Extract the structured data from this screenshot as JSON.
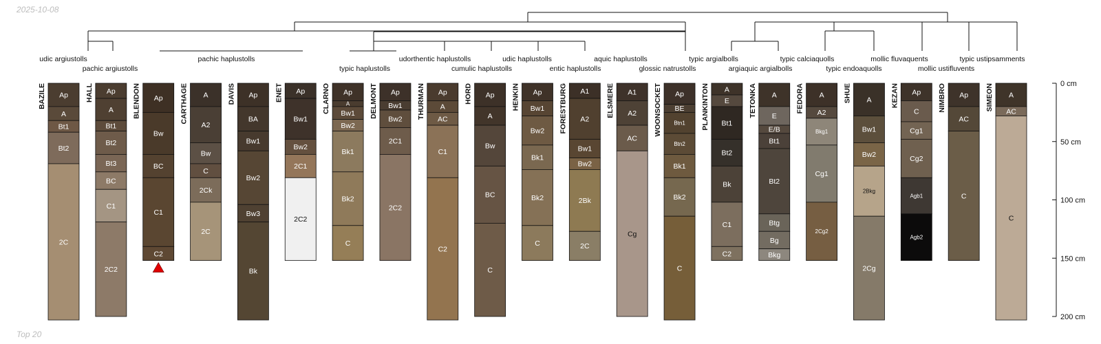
{
  "header_date": "2025-10-08",
  "footer_note": "Top 20",
  "colors": {
    "background": "#ffffff",
    "line": "#111111",
    "depth_limit_marker": "#e00000"
  },
  "chart_data": {
    "type": "soil_profile_sketch",
    "depth_axis": {
      "unit": "cm",
      "range": [
        0,
        200
      ],
      "ticks": [
        0,
        50,
        100,
        150,
        200
      ],
      "tick_labels": [
        "0 cm",
        "50 cm",
        "100 cm",
        "150 cm",
        "200 cm"
      ]
    },
    "taxonomy_labels": [
      {
        "text": "udic argiustolls",
        "row": 1
      },
      {
        "text": "pachic argiustolls",
        "row": 2
      },
      {
        "text": "pachic haplustolls",
        "row": 1
      },
      {
        "text": "typic haplustolls",
        "row": 2
      },
      {
        "text": "udorthentic haplustolls",
        "row": 1
      },
      {
        "text": "cumulic haplustolls",
        "row": 2
      },
      {
        "text": "udic haplustolls",
        "row": 1
      },
      {
        "text": "entic haplustolls",
        "row": 2
      },
      {
        "text": "aquic haplustolls",
        "row": 1
      },
      {
        "text": "glossic natrustolls",
        "row": 2
      },
      {
        "text": "typic argialbolls",
        "row": 1
      },
      {
        "text": "argiaquic argialbolls",
        "row": 2
      },
      {
        "text": "typic calciaquolls",
        "row": 1
      },
      {
        "text": "typic endoaquolls",
        "row": 2
      },
      {
        "text": "mollic fluvaquents",
        "row": 1
      },
      {
        "text": "mollic ustifluvents",
        "row": 2
      },
      {
        "text": "typic ustipsamments",
        "row": 1
      }
    ],
    "profiles": [
      {
        "name": "BAZILE",
        "horizons": [
          {
            "name": "Ap",
            "top": 0,
            "bottom": 20,
            "color": "#4b3d30"
          },
          {
            "name": "A",
            "top": 20,
            "bottom": 32,
            "color": "#5a4a3a"
          },
          {
            "name": "Bt1",
            "top": 32,
            "bottom": 42,
            "color": "#6e5845"
          },
          {
            "name": "Bt2",
            "top": 42,
            "bottom": 69,
            "color": "#7e6b5b"
          },
          {
            "name": "2C",
            "top": 69,
            "bottom": 203,
            "color": "#a58e72"
          }
        ]
      },
      {
        "name": "HALL",
        "horizons": [
          {
            "name": "Ap",
            "top": 0,
            "bottom": 13,
            "color": "#4b3d30"
          },
          {
            "name": "A",
            "top": 13,
            "bottom": 32,
            "color": "#4f4032"
          },
          {
            "name": "Bt1",
            "top": 32,
            "bottom": 41,
            "color": "#5d4b3b"
          },
          {
            "name": "Bt2",
            "top": 41,
            "bottom": 61,
            "color": "#6e5b4a"
          },
          {
            "name": "Bt3",
            "top": 61,
            "bottom": 76,
            "color": "#7a6655"
          },
          {
            "name": "BC",
            "top": 76,
            "bottom": 91,
            "color": "#8d7a67"
          },
          {
            "name": "C1",
            "top": 91,
            "bottom": 119,
            "color": "#a49583"
          },
          {
            "name": "2C2",
            "top": 119,
            "bottom": 200,
            "color": "#8d7a68"
          }
        ]
      },
      {
        "name": "BLENDON",
        "depth_limit_marker": true,
        "horizons": [
          {
            "name": "Ap",
            "top": 0,
            "bottom": 25,
            "color": "#3e3024"
          },
          {
            "name": "Bw",
            "top": 25,
            "bottom": 61,
            "color": "#4a3a2a"
          },
          {
            "name": "BC",
            "top": 61,
            "bottom": 81,
            "color": "#544230"
          },
          {
            "name": "C1",
            "top": 81,
            "bottom": 140,
            "color": "#5a4631"
          },
          {
            "name": "C2",
            "top": 140,
            "bottom": 152,
            "color": "#5e4833"
          }
        ]
      },
      {
        "name": "CARTHAGE",
        "horizons": [
          {
            "name": "A",
            "top": 0,
            "bottom": 20,
            "color": "#3b3129"
          },
          {
            "name": "A2",
            "top": 20,
            "bottom": 51,
            "color": "#4a3f35"
          },
          {
            "name": "Bw",
            "top": 51,
            "bottom": 69,
            "color": "#5c5045"
          },
          {
            "name": "C",
            "top": 69,
            "bottom": 81,
            "color": "#614f40"
          },
          {
            "name": "2Ck",
            "top": 81,
            "bottom": 102,
            "color": "#7c6c5a"
          },
          {
            "name": "2C",
            "top": 102,
            "bottom": 152,
            "color": "#a69479"
          }
        ]
      },
      {
        "name": "DAVIS",
        "horizons": [
          {
            "name": "Ap",
            "top": 0,
            "bottom": 20,
            "color": "#3d3127"
          },
          {
            "name": "BA",
            "top": 20,
            "bottom": 41,
            "color": "#43372c"
          },
          {
            "name": "Bw1",
            "top": 41,
            "bottom": 58,
            "color": "#473a2e"
          },
          {
            "name": "Bw2",
            "top": 58,
            "bottom": 104,
            "color": "#564634"
          },
          {
            "name": "Bw3",
            "top": 104,
            "bottom": 119,
            "color": "#4f4132"
          },
          {
            "name": "Bk",
            "top": 119,
            "bottom": 203,
            "color": "#544633"
          }
        ]
      },
      {
        "name": "ENET",
        "horizons": [
          {
            "name": "Ap",
            "top": 0,
            "bottom": 13,
            "color": "#3b3129"
          },
          {
            "name": "Bw1",
            "top": 13,
            "bottom": 48,
            "color": "#3e322a"
          },
          {
            "name": "Bw2",
            "top": 48,
            "bottom": 61,
            "color": "#64503f"
          },
          {
            "name": "2C1",
            "top": 61,
            "bottom": 81,
            "color": "#94765a"
          },
          {
            "name": "2C2",
            "top": 81,
            "bottom": 152,
            "color": "#f0f0f0"
          }
        ]
      },
      {
        "name": "CLARNO",
        "horizons": [
          {
            "name": "Ap",
            "top": 0,
            "bottom": 15,
            "color": "#3f3228"
          },
          {
            "name": "A",
            "top": 15,
            "bottom": 20,
            "color": "#4a3c2f"
          },
          {
            "name": "Bw1",
            "top": 20,
            "bottom": 31,
            "color": "#5c4a39"
          },
          {
            "name": "Bw2",
            "top": 31,
            "bottom": 41,
            "color": "#7c6851"
          },
          {
            "name": "Bk1",
            "top": 41,
            "bottom": 76,
            "color": "#8c7a5e"
          },
          {
            "name": "Bk2",
            "top": 76,
            "bottom": 122,
            "color": "#8f7a5a"
          },
          {
            "name": "C",
            "top": 122,
            "bottom": 152,
            "color": "#957e57"
          }
        ]
      },
      {
        "name": "DELMONT",
        "horizons": [
          {
            "name": "Ap",
            "top": 0,
            "bottom": 15,
            "color": "#3d3129"
          },
          {
            "name": "Bw1",
            "top": 15,
            "bottom": 23,
            "color": "#4a3d31"
          },
          {
            "name": "Bw2",
            "top": 23,
            "bottom": 38,
            "color": "#5f4e3d"
          },
          {
            "name": "2C1",
            "top": 38,
            "bottom": 61,
            "color": "#6e5c4b"
          },
          {
            "name": "2C2",
            "top": 61,
            "bottom": 152,
            "color": "#8a7564"
          }
        ]
      },
      {
        "name": "THURMAN",
        "horizons": [
          {
            "name": "Ap",
            "top": 0,
            "bottom": 15,
            "color": "#4a3b2e"
          },
          {
            "name": "A",
            "top": 15,
            "bottom": 25,
            "color": "#5c4a38"
          },
          {
            "name": "AC",
            "top": 25,
            "bottom": 36,
            "color": "#6e5a45"
          },
          {
            "name": "C1",
            "top": 36,
            "bottom": 81,
            "color": "#8b7257"
          },
          {
            "name": "C2",
            "top": 81,
            "bottom": 203,
            "color": "#93744f"
          }
        ]
      },
      {
        "name": "HORD",
        "horizons": [
          {
            "name": "Ap",
            "top": 0,
            "bottom": 20,
            "color": "#3d3128"
          },
          {
            "name": "A",
            "top": 20,
            "bottom": 36,
            "color": "#42352a"
          },
          {
            "name": "Bw",
            "top": 36,
            "bottom": 71,
            "color": "#54463a"
          },
          {
            "name": "BC",
            "top": 71,
            "bottom": 120,
            "color": "#665444"
          },
          {
            "name": "C",
            "top": 120,
            "bottom": 200,
            "color": "#6e5b48"
          }
        ]
      },
      {
        "name": "HENKIN",
        "horizons": [
          {
            "name": "Ap",
            "top": 0,
            "bottom": 15,
            "color": "#3f3228"
          },
          {
            "name": "Bw1",
            "top": 15,
            "bottom": 28,
            "color": "#574533"
          },
          {
            "name": "Bw2",
            "top": 28,
            "bottom": 53,
            "color": "#6e5a43"
          },
          {
            "name": "Bk1",
            "top": 53,
            "bottom": 74,
            "color": "#7a6850"
          },
          {
            "name": "Bk2",
            "top": 74,
            "bottom": 122,
            "color": "#857156"
          },
          {
            "name": "C",
            "top": 122,
            "bottom": 152,
            "color": "#8c7a5c"
          }
        ]
      },
      {
        "name": "FORESTBURG",
        "horizons": [
          {
            "name": "A1",
            "top": 0,
            "bottom": 13,
            "color": "#3c3027"
          },
          {
            "name": "A2",
            "top": 13,
            "bottom": 48,
            "color": "#50402f"
          },
          {
            "name": "Bw1",
            "top": 48,
            "bottom": 64,
            "color": "#594632"
          },
          {
            "name": "Bw2",
            "top": 64,
            "bottom": 74,
            "color": "#7a6245"
          },
          {
            "name": "2Bk",
            "top": 74,
            "bottom": 127,
            "color": "#8e7a52"
          },
          {
            "name": "2C",
            "top": 127,
            "bottom": 152,
            "color": "#8a7e66"
          }
        ]
      },
      {
        "name": "ELSMERE",
        "horizons": [
          {
            "name": "A1",
            "top": 0,
            "bottom": 15,
            "color": "#3e322a"
          },
          {
            "name": "A2",
            "top": 15,
            "bottom": 36,
            "color": "#4e4236"
          },
          {
            "name": "AC",
            "top": 36,
            "bottom": 58,
            "color": "#6b5b4b"
          },
          {
            "name": "Cg",
            "top": 58,
            "bottom": 200,
            "color": "#a8968a"
          }
        ]
      },
      {
        "name": "WOONSOCKET",
        "horizons": [
          {
            "name": "Ap",
            "top": 0,
            "bottom": 18,
            "color": "#3d3129"
          },
          {
            "name": "BE",
            "top": 18,
            "bottom": 25,
            "color": "#4c3f32"
          },
          {
            "name": "Btn1",
            "top": 25,
            "bottom": 43,
            "color": "#52422f"
          },
          {
            "name": "Btn2",
            "top": 43,
            "bottom": 61,
            "color": "#5c4b36"
          },
          {
            "name": "Bk1",
            "top": 61,
            "bottom": 81,
            "color": "#6e5a3f"
          },
          {
            "name": "Bk2",
            "top": 81,
            "bottom": 114,
            "color": "#76684f"
          },
          {
            "name": "C",
            "top": 114,
            "bottom": 203,
            "color": "#765e39"
          }
        ]
      },
      {
        "name": "PLANKINTON",
        "horizons": [
          {
            "name": "A",
            "top": 0,
            "bottom": 10,
            "color": "#3e3329"
          },
          {
            "name": "E",
            "top": 10,
            "bottom": 20,
            "color": "#55493e"
          },
          {
            "name": "Bt1",
            "top": 20,
            "bottom": 48,
            "color": "#2f2822"
          },
          {
            "name": "Bt2",
            "top": 48,
            "bottom": 71,
            "color": "#35302a"
          },
          {
            "name": "Bk",
            "top": 71,
            "bottom": 102,
            "color": "#4c4238"
          },
          {
            "name": "C1",
            "top": 102,
            "bottom": 140,
            "color": "#7c6e5e"
          },
          {
            "name": "C2",
            "top": 140,
            "bottom": 152,
            "color": "#7e715f"
          }
        ]
      },
      {
        "name": "TETONKA",
        "horizons": [
          {
            "name": "A",
            "top": 0,
            "bottom": 20,
            "color": "#3e3329"
          },
          {
            "name": "E",
            "top": 20,
            "bottom": 36,
            "color": "#6e665e"
          },
          {
            "name": "E/B",
            "top": 36,
            "bottom": 43,
            "color": "#55493e"
          },
          {
            "name": "Bt1",
            "top": 43,
            "bottom": 56,
            "color": "#4b4139"
          },
          {
            "name": "Bt2",
            "top": 56,
            "bottom": 112,
            "color": "#4e453c"
          },
          {
            "name": "Btg",
            "top": 112,
            "bottom": 127,
            "color": "#6a6459"
          },
          {
            "name": "Bg",
            "top": 127,
            "bottom": 142,
            "color": "#736c61"
          },
          {
            "name": "Bkg",
            "top": 142,
            "bottom": 152,
            "color": "#8d877e"
          }
        ]
      },
      {
        "name": "FEDORA",
        "horizons": [
          {
            "name": "A",
            "top": 0,
            "bottom": 20,
            "color": "#3d3128"
          },
          {
            "name": "A2",
            "top": 20,
            "bottom": 30,
            "color": "#55493e"
          },
          {
            "name": "Bkg1",
            "top": 30,
            "bottom": 53,
            "color": "#8e8679"
          },
          {
            "name": "Cg1",
            "top": 53,
            "bottom": 102,
            "color": "#817b6e"
          },
          {
            "name": "2Cg2",
            "top": 102,
            "bottom": 152,
            "color": "#765e42"
          }
        ]
      },
      {
        "name": "SHUE",
        "horizons": [
          {
            "name": "A",
            "top": 0,
            "bottom": 28,
            "color": "#3a3128"
          },
          {
            "name": "Bw1",
            "top": 28,
            "bottom": 51,
            "color": "#5c4f3c"
          },
          {
            "name": "Bw2",
            "top": 51,
            "bottom": 71,
            "color": "#7a6547"
          },
          {
            "name": "2Bkg",
            "top": 71,
            "bottom": 114,
            "color": "#b6a48a"
          },
          {
            "name": "2Cg",
            "top": 114,
            "bottom": 203,
            "color": "#857a69"
          }
        ]
      },
      {
        "name": "KEZAN",
        "horizons": [
          {
            "name": "Ap",
            "top": 0,
            "bottom": 15,
            "color": "#3e332a"
          },
          {
            "name": "C",
            "top": 15,
            "bottom": 33,
            "color": "#6a5b4d"
          },
          {
            "name": "Cg1",
            "top": 33,
            "bottom": 48,
            "color": "#736453"
          },
          {
            "name": "Cg2",
            "top": 48,
            "bottom": 81,
            "color": "#6f604f"
          },
          {
            "name": "Agb1",
            "top": 81,
            "bottom": 112,
            "color": "#3e3833"
          },
          {
            "name": "Agb2",
            "top": 112,
            "bottom": 152,
            "color": "#0c0b0b"
          }
        ]
      },
      {
        "name": "NIMBRO",
        "horizons": [
          {
            "name": "Ap",
            "top": 0,
            "bottom": 20,
            "color": "#3e332a"
          },
          {
            "name": "AC",
            "top": 20,
            "bottom": 41,
            "color": "#544838"
          },
          {
            "name": "C",
            "top": 41,
            "bottom": 152,
            "color": "#6b5d48"
          }
        ]
      },
      {
        "name": "SIMEON",
        "horizons": [
          {
            "name": "A",
            "top": 0,
            "bottom": 20,
            "color": "#3f3429"
          },
          {
            "name": "AC",
            "top": 20,
            "bottom": 28,
            "color": "#7a6a5a"
          },
          {
            "name": "C",
            "top": 28,
            "bottom": 203,
            "color": "#bcaa96"
          }
        ]
      }
    ]
  }
}
